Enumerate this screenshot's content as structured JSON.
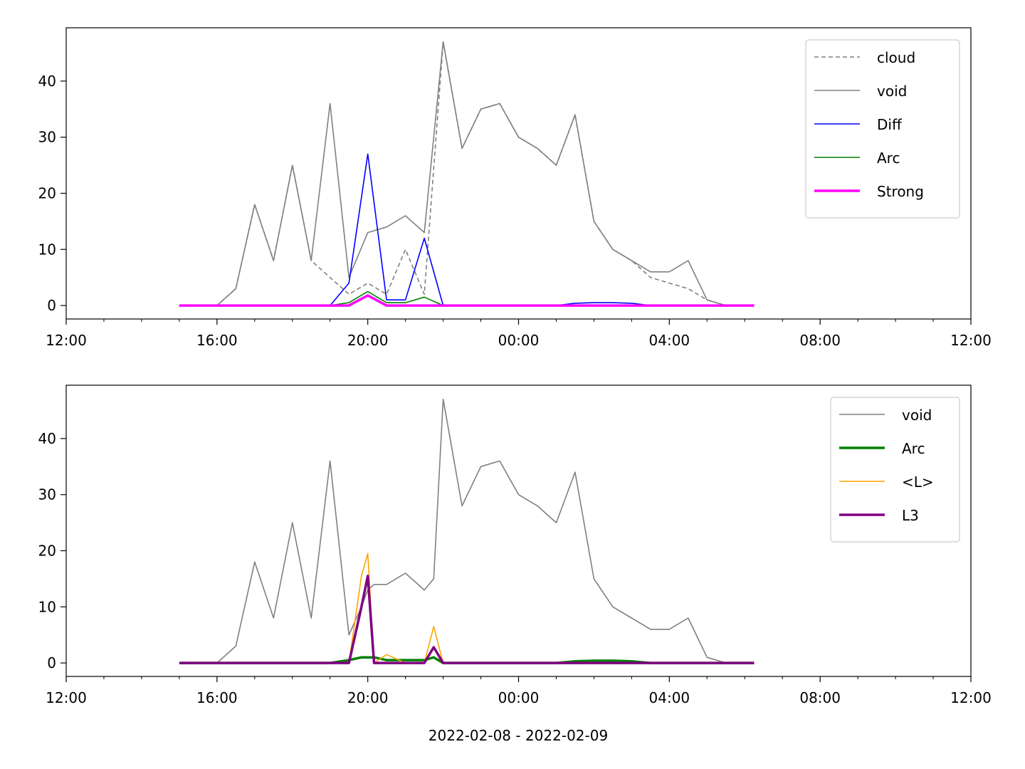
{
  "xlabel": "2022-02-08 - 2022-02-09",
  "chart_data": [
    {
      "type": "line",
      "title": "",
      "xlabel": "",
      "ylabel": "",
      "x_unit": "time",
      "xlim": [
        "2022-02-08 12:00",
        "2022-02-09 12:00"
      ],
      "ylim": [
        -2.4,
        49.5
      ],
      "x_ticks": [
        "12:00",
        "16:00",
        "20:00",
        "00:00",
        "04:00",
        "08:00",
        "12:00"
      ],
      "y_ticks": [
        0,
        10,
        20,
        30,
        40
      ],
      "grid": false,
      "legend_position": "top-right",
      "x": [
        "15:00",
        "16:00",
        "16:30",
        "17:00",
        "17:30",
        "18:00",
        "18:30",
        "19:00",
        "19:30",
        "20:00",
        "20:30",
        "21:00",
        "21:30",
        "22:00",
        "22:30",
        "23:00",
        "23:30",
        "00:00",
        "00:30",
        "01:00",
        "01:30",
        "02:00",
        "02:30",
        "03:00",
        "03:30",
        "04:00",
        "04:30",
        "05:00",
        "05:30",
        "06:00",
        "06:15"
      ],
      "series": [
        {
          "name": "cloud",
          "color": "#808080",
          "style": "dashed",
          "values": [
            0,
            0,
            3,
            18,
            8,
            25,
            8,
            5,
            2,
            4,
            2,
            10,
            2,
            47,
            28,
            35,
            36,
            30,
            28,
            25,
            34,
            15,
            10,
            8,
            5,
            4,
            3,
            1,
            0,
            0,
            0
          ]
        },
        {
          "name": "void",
          "color": "#808080",
          "style": "solid",
          "values": [
            0,
            0,
            3,
            18,
            8,
            25,
            8,
            36,
            5,
            13,
            14,
            16,
            13,
            47,
            28,
            35,
            36,
            30,
            28,
            25,
            34,
            15,
            10,
            8,
            6,
            6,
            8,
            1,
            0,
            0,
            0
          ]
        },
        {
          "name": "Diff",
          "color": "#0000ff",
          "style": "solid",
          "values": [
            0,
            0,
            0,
            0,
            0,
            0,
            0,
            0,
            4,
            27,
            1,
            1,
            12,
            0,
            0,
            0,
            0,
            0,
            0,
            0,
            0.4,
            0.5,
            0.5,
            0.4,
            0,
            0,
            0,
            0,
            0,
            0,
            0
          ]
        },
        {
          "name": "Arc",
          "color": "#008000",
          "style": "solid",
          "values": [
            0,
            0,
            0,
            0,
            0,
            0,
            0,
            0,
            0.5,
            2.5,
            0.5,
            0.5,
            1.5,
            0,
            0,
            0,
            0,
            0,
            0,
            0,
            0,
            0,
            0,
            0,
            0,
            0,
            0,
            0,
            0,
            0,
            0
          ]
        },
        {
          "name": "Strong",
          "color": "#ff00ff",
          "style": "thick",
          "values": [
            0,
            0,
            0,
            0,
            0,
            0,
            0,
            0,
            0,
            1.8,
            0,
            0,
            0,
            0,
            0,
            0,
            0,
            0,
            0,
            0,
            0,
            0,
            0,
            0,
            0,
            0,
            0,
            0,
            0,
            0,
            0
          ]
        }
      ]
    },
    {
      "type": "line",
      "title": "",
      "xlabel": "2022-02-08 - 2022-02-09",
      "ylabel": "",
      "x_unit": "time",
      "xlim": [
        "2022-02-08 12:00",
        "2022-02-09 12:00"
      ],
      "ylim": [
        -2.4,
        49.5
      ],
      "x_ticks": [
        "12:00",
        "16:00",
        "20:00",
        "00:00",
        "04:00",
        "08:00",
        "12:00"
      ],
      "y_ticks": [
        0,
        10,
        20,
        30,
        40
      ],
      "grid": false,
      "legend_position": "top-right",
      "x": [
        "15:00",
        "16:00",
        "16:30",
        "17:00",
        "17:30",
        "18:00",
        "18:30",
        "19:00",
        "19:30",
        "19:50",
        "20:00",
        "20:10",
        "20:30",
        "21:00",
        "21:30",
        "21:45",
        "22:00",
        "22:30",
        "23:00",
        "23:30",
        "00:00",
        "00:30",
        "01:00",
        "01:30",
        "02:00",
        "02:30",
        "03:00",
        "03:30",
        "04:00",
        "04:30",
        "05:00",
        "05:30",
        "06:00",
        "06:15"
      ],
      "series": [
        {
          "name": "void",
          "color": "#808080",
          "style": "solid",
          "values": [
            0,
            0,
            3,
            18,
            8,
            25,
            8,
            36,
            5,
            10,
            13,
            14,
            14,
            16,
            13,
            15,
            47,
            28,
            35,
            36,
            30,
            28,
            25,
            34,
            15,
            10,
            8,
            6,
            6,
            8,
            1,
            0,
            0,
            0
          ]
        },
        {
          "name": "Arc",
          "color": "#008000",
          "style": "thick",
          "values": [
            0,
            0,
            0,
            0,
            0,
            0,
            0,
            0,
            0.5,
            1,
            1,
            1,
            0.5,
            0.5,
            0.5,
            1,
            0,
            0,
            0,
            0,
            0,
            0,
            0,
            0.3,
            0.4,
            0.4,
            0.3,
            0,
            0,
            0,
            0,
            0,
            0,
            0
          ]
        },
        {
          "name": "<L>",
          "color": "#ffa500",
          "style": "solid",
          "values": [
            0,
            0,
            0,
            0,
            0,
            0,
            0,
            0,
            0,
            15.5,
            19.5,
            0,
            1.5,
            0,
            0,
            6.5,
            0,
            0,
            0,
            0,
            0,
            0,
            0,
            0,
            0,
            0,
            0,
            0,
            0,
            0,
            0,
            0,
            0,
            0
          ]
        },
        {
          "name": "L3",
          "color": "#800080",
          "style": "thick",
          "values": [
            0,
            0,
            0,
            0,
            0,
            0,
            0,
            0,
            0,
            10,
            15.5,
            0,
            0,
            0,
            0,
            2.8,
            0,
            0,
            0,
            0,
            0,
            0,
            0,
            0,
            0,
            0,
            0,
            0,
            0,
            0,
            0,
            0,
            0,
            0
          ]
        }
      ]
    }
  ]
}
